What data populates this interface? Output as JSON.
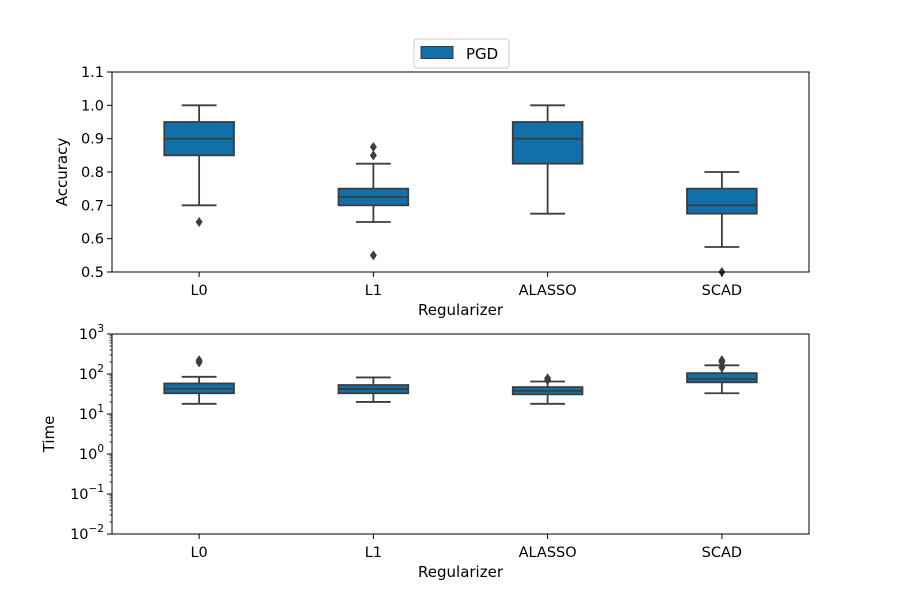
{
  "legend": {
    "label": "PGD",
    "color": "#1170aa"
  },
  "style": {
    "box_color": "#1170aa",
    "line_color": "#3d3d3d"
  },
  "chart_data": [
    {
      "type": "box",
      "xlabel": "Regularizer",
      "ylabel": "Accuracy",
      "yscale": "linear",
      "ylim": [
        0.5,
        1.1
      ],
      "yticks": [
        0.5,
        0.6,
        0.7,
        0.8,
        0.9,
        1.0,
        1.1
      ],
      "ytick_labels": [
        "0.5",
        "0.6",
        "0.7",
        "0.8",
        "0.9",
        "1.0",
        "1.1"
      ],
      "categories": [
        "L0",
        "L1",
        "ALASSO",
        "SCAD"
      ],
      "series": [
        {
          "name": "PGD",
          "boxes": [
            {
              "whislo": 0.7,
              "q1": 0.85,
              "med": 0.9,
              "q3": 0.95,
              "whishi": 1.0,
              "fliers": [
                0.65
              ]
            },
            {
              "whislo": 0.65,
              "q1": 0.7,
              "med": 0.725,
              "q3": 0.75,
              "whishi": 0.825,
              "fliers": [
                0.55,
                0.85,
                0.875
              ]
            },
            {
              "whislo": 0.675,
              "q1": 0.825,
              "med": 0.9,
              "q3": 0.95,
              "whishi": 1.0,
              "fliers": []
            },
            {
              "whislo": 0.575,
              "q1": 0.675,
              "med": 0.7,
              "q3": 0.75,
              "whishi": 0.8,
              "fliers": [
                0.5
              ]
            }
          ]
        }
      ]
    },
    {
      "type": "box",
      "xlabel": "Regularizer",
      "ylabel": "Time",
      "yscale": "log",
      "ylim": [
        0.01,
        1000
      ],
      "yticks": [
        0.01,
        0.1,
        1,
        10,
        100,
        1000
      ],
      "ytick_labels": [
        {
          "base": "10",
          "exp": "−2"
        },
        {
          "base": "10",
          "exp": "−1"
        },
        {
          "base": "10",
          "exp": "0"
        },
        {
          "base": "10",
          "exp": "1"
        },
        {
          "base": "10",
          "exp": "2"
        },
        {
          "base": "10",
          "exp": "3"
        }
      ],
      "categories": [
        "L0",
        "L1",
        "ALASSO",
        "SCAD"
      ],
      "series": [
        {
          "name": "PGD",
          "boxes": [
            {
              "whislo": 18,
              "q1": 33,
              "med": 43,
              "q3": 58,
              "whishi": 85,
              "fliers": [
                195,
                220
              ]
            },
            {
              "whislo": 20,
              "q1": 33,
              "med": 42,
              "q3": 53,
              "whishi": 82,
              "fliers": []
            },
            {
              "whislo": 18,
              "q1": 31,
              "med": 38,
              "q3": 47,
              "whishi": 65,
              "fliers": [
                70,
                78
              ]
            },
            {
              "whislo": 33,
              "q1": 62,
              "med": 76,
              "q3": 105,
              "whishi": 165,
              "fliers": [
                145,
                200,
                220
              ]
            }
          ]
        }
      ]
    }
  ]
}
